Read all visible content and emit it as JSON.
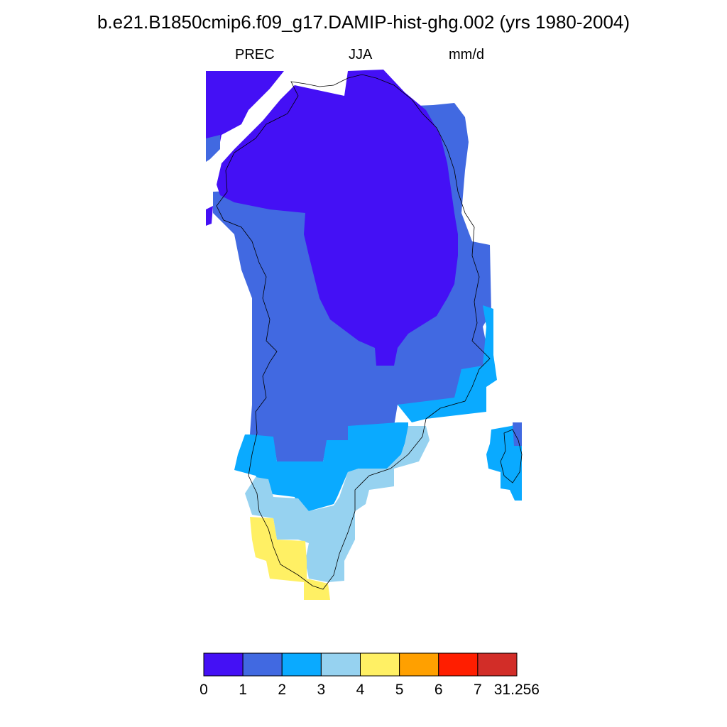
{
  "title": "b.e21.B1850cmip6.f09_g17.DAMIP-hist-ghg.002 (yrs 1980-2004)",
  "subtitle": {
    "left": "PREC",
    "center": "JJA",
    "right": "mm/d"
  },
  "colorbar": {
    "colors": [
      "#4410f5",
      "#4169e1",
      "#0aaaff",
      "#96d2f0",
      "#fff064",
      "#ffa000",
      "#ff1e00",
      "#d22d28"
    ],
    "labels": [
      "0",
      "1",
      "2",
      "3",
      "4",
      "5",
      "6",
      "7",
      "31.256"
    ]
  },
  "map": {
    "region": "Greenland",
    "variable": "PREC",
    "season": "JJA",
    "units": "mm/d"
  }
}
